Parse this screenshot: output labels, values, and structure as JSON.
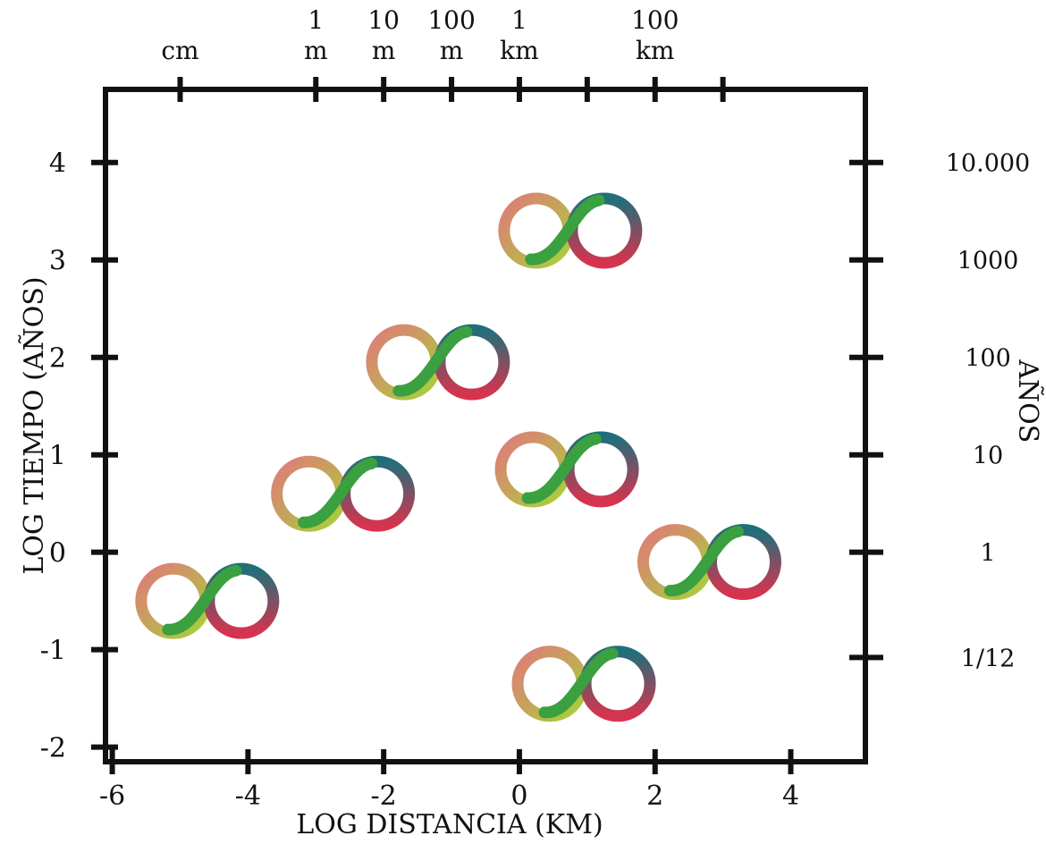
{
  "chart_data": {
    "type": "scatter",
    "xlabel": "LOG DISTANCIA (KM)",
    "ylabel": "LOG TIEMPO (AÑOS)",
    "right_axis_label": "AÑOS",
    "xlim": [
      -6.1,
      5.1
    ],
    "ylim": [
      -2.15,
      4.75
    ],
    "x_ticks": [
      -6,
      -4,
      -2,
      0,
      2,
      4
    ],
    "x_tick_labels": [
      "-6",
      "-4",
      "-2",
      "0",
      "2",
      "4"
    ],
    "y_ticks": [
      -2,
      -1,
      0,
      1,
      2,
      3,
      4
    ],
    "y_tick_labels": [
      "-2",
      "-1",
      "0",
      "1",
      "2",
      "3",
      "4"
    ],
    "top_ticks": [
      -5,
      -3,
      -2,
      -1,
      0,
      1,
      2,
      3
    ],
    "top_labels": [
      {
        "x": -5,
        "lines": [
          "cm"
        ]
      },
      {
        "x": -3,
        "lines": [
          "1",
          "m"
        ]
      },
      {
        "x": -2,
        "lines": [
          "10",
          "m"
        ]
      },
      {
        "x": -1,
        "lines": [
          "100",
          "m"
        ]
      },
      {
        "x": 0,
        "lines": [
          "1",
          "km"
        ]
      },
      {
        "x": 2,
        "lines": [
          "100",
          "km"
        ]
      }
    ],
    "right_ticks": [
      4,
      3,
      2,
      1,
      0,
      -1.08
    ],
    "right_labels": [
      "10.000",
      "1000",
      "100",
      "10",
      "1",
      "1/12"
    ],
    "grid": false,
    "marker": "infinity-symbol",
    "points": [
      {
        "x": -4.6,
        "y": -0.5
      },
      {
        "x": -2.6,
        "y": 0.6
      },
      {
        "x": -1.2,
        "y": 1.95
      },
      {
        "x": 0.7,
        "y": 0.85
      },
      {
        "x": 0.75,
        "y": 3.3
      },
      {
        "x": 2.8,
        "y": -0.1
      },
      {
        "x": 0.95,
        "y": -1.35
      }
    ],
    "colors": {
      "axis": "#111111",
      "loop_pink": "#e07a7a",
      "loop_yellowgreen": "#a8d13a",
      "loop_green": "#3aa040",
      "loop_teal": "#1f6f7a",
      "loop_red": "#d8334e"
    }
  }
}
